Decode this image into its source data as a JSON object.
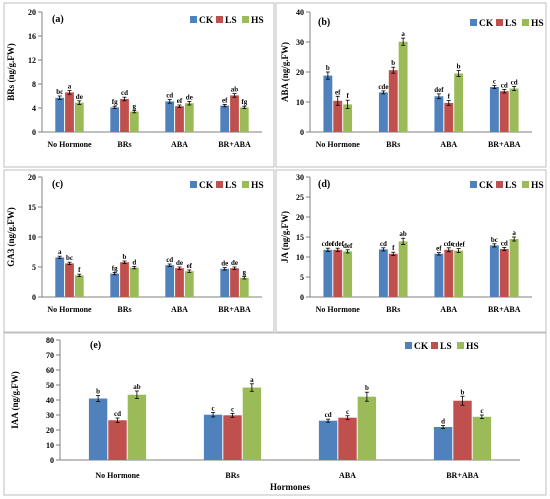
{
  "figure_title": "",
  "colors": {
    "CK": "#4f81bd",
    "LS": "#c0504d",
    "HS": "#9bbb59",
    "panel_border": "#bfbfbf"
  },
  "chart_data": [
    {
      "panel": "(a)",
      "type": "bar",
      "ylabel": "BRs (ng/g.FW)",
      "ylim": [
        0,
        20
      ],
      "yticks": [
        0,
        4,
        8,
        12,
        16,
        20
      ],
      "grid": false,
      "legend": "top-right",
      "categories": [
        "No Hormone",
        "BRs",
        "ABA",
        "BR+ABA"
      ],
      "series": [
        {
          "name": "CK",
          "values": [
            5.7,
            4.1,
            5.1,
            4.4
          ],
          "errors": [
            0.3,
            0.2,
            0.3,
            0.2
          ],
          "labels": [
            "bc",
            "fg",
            "cd",
            "ef"
          ]
        },
        {
          "name": "LS",
          "values": [
            6.6,
            5.5,
            4.3,
            6.1
          ],
          "errors": [
            0.3,
            0.3,
            0.2,
            0.3
          ],
          "labels": [
            "a",
            "cd",
            "ef",
            "ab"
          ]
        },
        {
          "name": "HS",
          "values": [
            4.9,
            3.4,
            4.8,
            4.1
          ],
          "errors": [
            0.3,
            0.2,
            0.3,
            0.2
          ],
          "labels": [
            "de",
            "g",
            "de",
            "fg"
          ]
        }
      ]
    },
    {
      "panel": "(b)",
      "type": "bar",
      "ylabel": "ABA (ng/g.FW)",
      "ylim": [
        0,
        40
      ],
      "yticks": [
        0,
        10,
        20,
        30,
        40
      ],
      "grid": false,
      "legend": "top-right",
      "categories": [
        "No Hormone",
        "BRs",
        "ABA",
        "BR+ABA"
      ],
      "series": [
        {
          "name": "CK",
          "values": [
            18.8,
            13.2,
            11.9,
            15.0
          ],
          "errors": [
            1.2,
            0.5,
            0.8,
            0.5
          ],
          "labels": [
            "b",
            "cde",
            "def",
            "c"
          ]
        },
        {
          "name": "LS",
          "values": [
            10.4,
            20.6,
            9.7,
            13.6
          ],
          "errors": [
            1.5,
            1.0,
            0.8,
            0.6
          ],
          "labels": [
            "ef",
            "b",
            "f",
            "cd"
          ]
        },
        {
          "name": "HS",
          "values": [
            9.2,
            30.1,
            19.5,
            14.5
          ],
          "errors": [
            1.4,
            1.2,
            1.0,
            0.7
          ],
          "labels": [
            "f",
            "a",
            "b",
            "cd"
          ]
        }
      ]
    },
    {
      "panel": "(c)",
      "type": "bar",
      "ylabel": "GA3 (ng/g.FW)",
      "ylim": [
        0,
        20
      ],
      "yticks": [
        0,
        5,
        10,
        15,
        20
      ],
      "grid": false,
      "legend": "top-right",
      "categories": [
        "No Hormone",
        "BRs",
        "ABA",
        "BR+ABA"
      ],
      "series": [
        {
          "name": "CK",
          "values": [
            6.6,
            3.9,
            5.3,
            4.7
          ],
          "errors": [
            0.2,
            0.2,
            0.2,
            0.2
          ],
          "labels": [
            "a",
            "fg",
            "cd",
            "de"
          ]
        },
        {
          "name": "LS",
          "values": [
            5.6,
            5.8,
            4.8,
            4.8
          ],
          "errors": [
            0.2,
            0.2,
            0.2,
            0.2
          ],
          "labels": [
            "bc",
            "b",
            "de",
            "de"
          ]
        },
        {
          "name": "HS",
          "values": [
            3.6,
            4.9,
            4.3,
            3.2
          ],
          "errors": [
            0.2,
            0.2,
            0.2,
            0.2
          ],
          "labels": [
            "f",
            "d",
            "ef",
            "g"
          ]
        }
      ]
    },
    {
      "panel": "(d)",
      "type": "bar",
      "ylabel": "JA (ng/g.FW)",
      "ylim": [
        0,
        30
      ],
      "yticks": [
        0,
        5,
        10,
        15,
        20,
        25,
        30
      ],
      "grid": false,
      "legend": "top-right",
      "categories": [
        "No Hormone",
        "BRs",
        "ABA",
        "BR+ABA"
      ],
      "series": [
        {
          "name": "CK",
          "values": [
            11.8,
            11.9,
            10.8,
            12.9
          ],
          "errors": [
            0.4,
            0.4,
            0.3,
            0.4
          ],
          "labels": [
            "cdef",
            "cd",
            "ef",
            "bc"
          ]
        },
        {
          "name": "LS",
          "values": [
            11.8,
            10.8,
            11.8,
            12.0
          ],
          "errors": [
            0.4,
            0.4,
            0.5,
            0.4
          ],
          "labels": [
            "cdef",
            "f",
            "cde",
            "cd"
          ]
        },
        {
          "name": "HS",
          "values": [
            11.4,
            13.9,
            11.6,
            14.5
          ],
          "errors": [
            0.4,
            0.8,
            0.5,
            0.5
          ],
          "labels": [
            "def",
            "ab",
            "cdef",
            "a"
          ]
        }
      ]
    },
    {
      "panel": "(e)",
      "type": "bar",
      "xlabel": "Hormones",
      "ylabel": "IAA (ng/g.FW)",
      "ylim": [
        0,
        80
      ],
      "yticks": [
        0,
        10,
        20,
        30,
        40,
        50,
        60,
        70,
        80
      ],
      "grid": false,
      "legend": "top-right",
      "categories": [
        "No Hormone",
        "BRs",
        "ABA",
        "BR+ABA"
      ],
      "series": [
        {
          "name": "CK",
          "values": [
            41.0,
            30.2,
            26.2,
            22.0
          ],
          "errors": [
            2.0,
            1.5,
            1.0,
            1.0
          ],
          "labels": [
            "b",
            "c",
            "cd",
            "d"
          ]
        },
        {
          "name": "LS",
          "values": [
            26.5,
            29.8,
            28.2,
            39.5
          ],
          "errors": [
            1.5,
            1.3,
            1.3,
            3.0
          ],
          "labels": [
            "cd",
            "c",
            "c",
            "b"
          ]
        },
        {
          "name": "HS",
          "values": [
            43.5,
            48.3,
            42.2,
            28.8
          ],
          "errors": [
            2.5,
            2.5,
            3.0,
            1.2
          ],
          "labels": [
            "ab",
            "a",
            "b",
            "c"
          ]
        }
      ]
    }
  ]
}
